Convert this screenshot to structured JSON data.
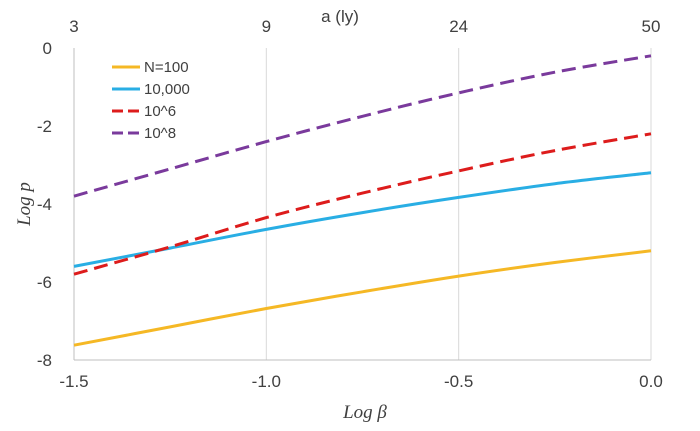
{
  "chart_data": {
    "type": "line",
    "xlabel": "Log β",
    "ylabel": "Log p",
    "top_axis_label": "a (ly)",
    "xlim": [
      -1.5,
      0.0
    ],
    "ylim": [
      -8,
      0
    ],
    "x_ticks": [
      "-1.5",
      "-1.0",
      "-0.5",
      "0.0"
    ],
    "y_ticks": [
      "0",
      "-2",
      "-4",
      "-6",
      "-8"
    ],
    "top_ticks": [
      {
        "x": -1.5,
        "label": "3"
      },
      {
        "x": -1.0,
        "label": "9"
      },
      {
        "x": -0.5,
        "label": "24"
      },
      {
        "x": 0.0,
        "label": "50"
      }
    ],
    "grid": {
      "vertical": true,
      "horizontal": false
    },
    "legend_position": "top-left",
    "series": [
      {
        "name": "N=100",
        "color": "#f5b825",
        "dash": "solid",
        "x": [
          -1.5,
          -1.25,
          -1.0,
          -0.75,
          -0.5,
          -0.25,
          0.0
        ],
        "y": [
          -7.62,
          -7.15,
          -6.68,
          -6.25,
          -5.85,
          -5.5,
          -5.2
        ]
      },
      {
        "name": "10,000",
        "color": "#29aee4",
        "dash": "solid",
        "x": [
          -1.5,
          -1.25,
          -1.0,
          -0.75,
          -0.5,
          -0.25,
          0.0
        ],
        "y": [
          -5.6,
          -5.13,
          -4.65,
          -4.22,
          -3.83,
          -3.48,
          -3.2
        ]
      },
      {
        "name": "10^6",
        "color": "#dd1c1c",
        "dash": "dashed",
        "x": [
          -1.5,
          -1.25,
          -1.0,
          -0.75,
          -0.5,
          -0.25,
          0.0
        ],
        "y": [
          -5.8,
          -5.1,
          -4.35,
          -3.72,
          -3.15,
          -2.63,
          -2.2
        ]
      },
      {
        "name": "10^8",
        "color": "#7a3a9c",
        "dash": "dashed",
        "x": [
          -1.5,
          -1.25,
          -1.0,
          -0.75,
          -0.5,
          -0.25,
          0.0
        ],
        "y": [
          -3.8,
          -3.1,
          -2.4,
          -1.75,
          -1.15,
          -0.62,
          -0.2
        ]
      }
    ]
  }
}
